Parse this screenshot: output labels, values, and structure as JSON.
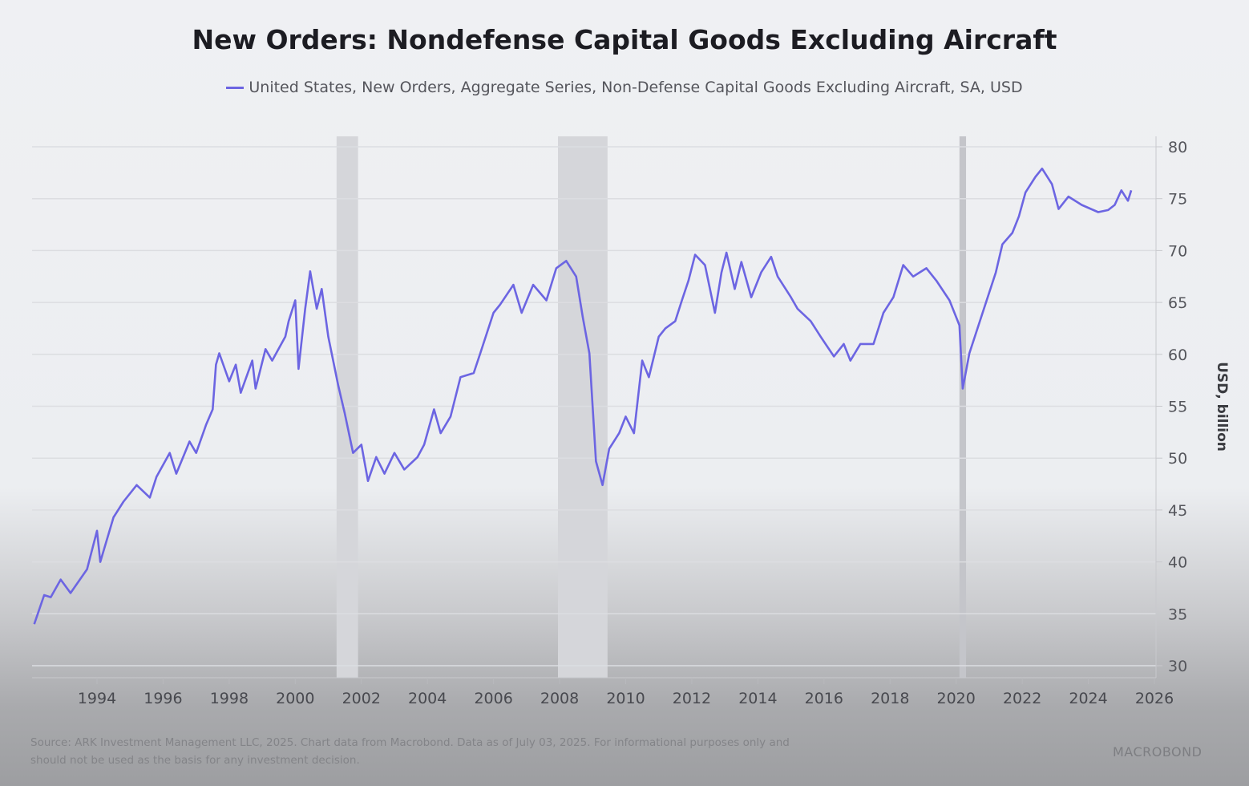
{
  "chart_data": {
    "type": "line",
    "title": "New Orders: Nondefense Capital Goods Excluding Aircraft",
    "legend": [
      "United States, New Orders, Aggregate Series, Non-Defense Capital Goods Excluding Aircraft, SA, USD"
    ],
    "legend_position": "top-center",
    "xlabel": "",
    "ylabel": "USD, billion",
    "xlim": [
      1992.0,
      2026.0
    ],
    "ylim": [
      30,
      80
    ],
    "x_ticks": [
      "1994",
      "1996",
      "1998",
      "2000",
      "2002",
      "2004",
      "2006",
      "2008",
      "2010",
      "2012",
      "2014",
      "2016",
      "2018",
      "2020",
      "2022",
      "2024",
      "2026"
    ],
    "y_ticks": [
      "30",
      "35",
      "40",
      "45",
      "50",
      "55",
      "60",
      "65",
      "70",
      "75",
      "80"
    ],
    "grid": true,
    "line_color": "#6c65e2",
    "recessions": [
      [
        2001.25,
        2001.9
      ],
      [
        2007.95,
        2009.45
      ],
      [
        2020.1,
        2020.3
      ]
    ],
    "series": [
      {
        "name": "United States, New Orders, Aggregate Series, Non-Defense Capital Goods Excluding Aircraft, SA, USD",
        "points": [
          [
            1992.1,
            34.0
          ],
          [
            1992.4,
            36.8
          ],
          [
            1992.6,
            36.6
          ],
          [
            1992.9,
            38.3
          ],
          [
            1993.2,
            37.0
          ],
          [
            1993.7,
            39.3
          ],
          [
            1994.0,
            43.0
          ],
          [
            1994.1,
            40.0
          ],
          [
            1994.5,
            44.3
          ],
          [
            1994.8,
            45.8
          ],
          [
            1995.2,
            47.4
          ],
          [
            1995.6,
            46.2
          ],
          [
            1995.8,
            48.2
          ],
          [
            1996.2,
            50.5
          ],
          [
            1996.4,
            48.5
          ],
          [
            1996.8,
            51.6
          ],
          [
            1997.0,
            50.5
          ],
          [
            1997.3,
            53.2
          ],
          [
            1997.5,
            54.7
          ],
          [
            1997.6,
            59.0
          ],
          [
            1997.7,
            60.1
          ],
          [
            1998.0,
            57.4
          ],
          [
            1998.2,
            59.0
          ],
          [
            1998.35,
            56.3
          ],
          [
            1998.7,
            59.4
          ],
          [
            1998.8,
            56.7
          ],
          [
            1999.1,
            60.5
          ],
          [
            1999.3,
            59.4
          ],
          [
            1999.7,
            61.7
          ],
          [
            1999.8,
            63.2
          ],
          [
            2000.0,
            65.2
          ],
          [
            2000.1,
            58.6
          ],
          [
            2000.3,
            64.4
          ],
          [
            2000.45,
            68.0
          ],
          [
            2000.65,
            64.4
          ],
          [
            2000.8,
            66.3
          ],
          [
            2001.0,
            61.7
          ],
          [
            2001.3,
            57.0
          ],
          [
            2001.5,
            54.3
          ],
          [
            2001.75,
            50.5
          ],
          [
            2002.0,
            51.3
          ],
          [
            2002.2,
            47.8
          ],
          [
            2002.45,
            50.1
          ],
          [
            2002.7,
            48.5
          ],
          [
            2003.0,
            50.5
          ],
          [
            2003.3,
            48.9
          ],
          [
            2003.7,
            50.1
          ],
          [
            2003.9,
            51.3
          ],
          [
            2004.2,
            54.7
          ],
          [
            2004.4,
            52.4
          ],
          [
            2004.7,
            54.0
          ],
          [
            2005.0,
            57.8
          ],
          [
            2005.4,
            58.2
          ],
          [
            2005.6,
            60.1
          ],
          [
            2006.0,
            64.0
          ],
          [
            2006.2,
            64.8
          ],
          [
            2006.6,
            66.7
          ],
          [
            2006.85,
            64.0
          ],
          [
            2007.2,
            66.7
          ],
          [
            2007.6,
            65.2
          ],
          [
            2007.9,
            68.3
          ],
          [
            2008.2,
            69.0
          ],
          [
            2008.5,
            67.5
          ],
          [
            2008.7,
            63.6
          ],
          [
            2008.9,
            60.1
          ],
          [
            2009.1,
            49.7
          ],
          [
            2009.3,
            47.4
          ],
          [
            2009.5,
            50.9
          ],
          [
            2009.8,
            52.4
          ],
          [
            2010.0,
            54.0
          ],
          [
            2010.25,
            52.4
          ],
          [
            2010.5,
            59.4
          ],
          [
            2010.7,
            57.8
          ],
          [
            2011.0,
            61.7
          ],
          [
            2011.2,
            62.5
          ],
          [
            2011.5,
            63.2
          ],
          [
            2011.7,
            65.2
          ],
          [
            2011.9,
            67.1
          ],
          [
            2012.1,
            69.6
          ],
          [
            2012.4,
            68.6
          ],
          [
            2012.7,
            64.0
          ],
          [
            2012.9,
            67.9
          ],
          [
            2013.05,
            69.8
          ],
          [
            2013.3,
            66.3
          ],
          [
            2013.5,
            68.9
          ],
          [
            2013.8,
            65.5
          ],
          [
            2014.1,
            67.9
          ],
          [
            2014.4,
            69.4
          ],
          [
            2014.6,
            67.5
          ],
          [
            2015.0,
            65.5
          ],
          [
            2015.2,
            64.4
          ],
          [
            2015.6,
            63.2
          ],
          [
            2015.9,
            61.7
          ],
          [
            2016.3,
            59.8
          ],
          [
            2016.6,
            61.0
          ],
          [
            2016.8,
            59.4
          ],
          [
            2017.1,
            61.0
          ],
          [
            2017.5,
            61.0
          ],
          [
            2017.8,
            64.0
          ],
          [
            2018.1,
            65.5
          ],
          [
            2018.4,
            68.6
          ],
          [
            2018.7,
            67.5
          ],
          [
            2019.1,
            68.3
          ],
          [
            2019.4,
            67.1
          ],
          [
            2019.8,
            65.2
          ],
          [
            2020.1,
            62.8
          ],
          [
            2020.2,
            56.7
          ],
          [
            2020.4,
            60.1
          ],
          [
            2020.8,
            64.0
          ],
          [
            2021.2,
            67.9
          ],
          [
            2021.4,
            70.6
          ],
          [
            2021.7,
            71.7
          ],
          [
            2021.9,
            73.3
          ],
          [
            2022.1,
            75.6
          ],
          [
            2022.4,
            77.1
          ],
          [
            2022.6,
            77.9
          ],
          [
            2022.9,
            76.4
          ],
          [
            2023.1,
            74.0
          ],
          [
            2023.4,
            75.2
          ],
          [
            2023.8,
            74.4
          ],
          [
            2024.3,
            73.7
          ],
          [
            2024.6,
            73.9
          ],
          [
            2024.8,
            74.4
          ],
          [
            2025.0,
            75.8
          ],
          [
            2025.2,
            74.8
          ],
          [
            2025.3,
            75.8
          ]
        ]
      }
    ]
  },
  "footer": {
    "source_line1": "Source: ARK Investment Management LLC, 2025. Chart data from Macrobond. Data as of July 03, 2025. For informational purposes only and",
    "source_line2": "should not be used as the basis for any investment decision.",
    "logo": "MACROBOND"
  }
}
